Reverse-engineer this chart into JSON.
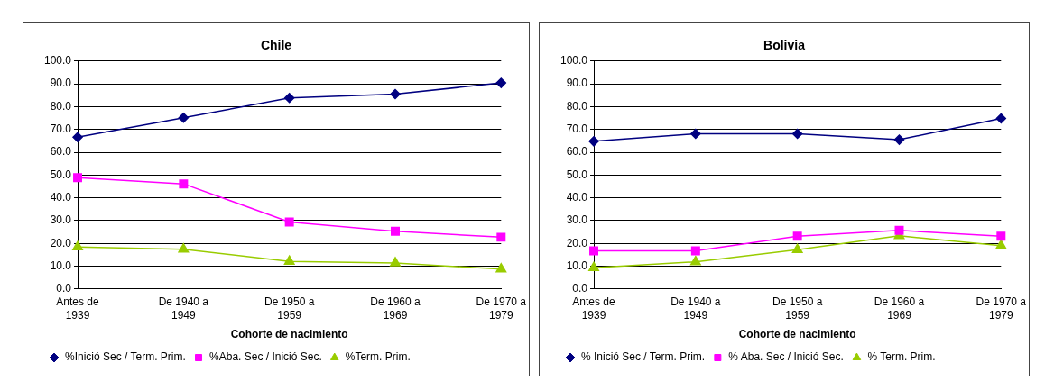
{
  "chart_data": [
    {
      "type": "line",
      "title": "Chile",
      "xlabel": "Cohorte de nacimiento",
      "categories": [
        "Antes de 1939",
        "De 1940 a 1949",
        "De 1950 a 1959",
        "De 1960 a 1969",
        "De 1970 a 1979"
      ],
      "series": [
        {
          "name": "%Inició Sec / Term. Prim.",
          "color": "#000080",
          "marker": "diamond",
          "values": [
            66.6,
            75.1,
            83.8,
            85.5,
            90.4
          ]
        },
        {
          "name": "%Aba. Sec / Inició Sec.",
          "color": "#ff00ff",
          "marker": "square",
          "values": [
            48.8,
            46.1,
            29.4,
            25.3,
            22.7
          ]
        },
        {
          "name": "%Term. Prim.",
          "color": "#99cc00",
          "marker": "triangle",
          "values": [
            18.4,
            17.4,
            12.1,
            11.4,
            8.7
          ]
        }
      ],
      "ylim": [
        0,
        100
      ],
      "yticks": [
        {
          "value": 0,
          "label": "0.0"
        },
        {
          "value": 10,
          "label": "10.0"
        },
        {
          "value": 20,
          "label": "20.0"
        },
        {
          "value": 30,
          "label": "30.0"
        },
        {
          "value": 40,
          "label": "40.0"
        },
        {
          "value": 50,
          "label": "50.0"
        },
        {
          "value": 60,
          "label": "60.0"
        },
        {
          "value": 70,
          "label": "70.0"
        },
        {
          "value": 80,
          "label": "80.0"
        },
        {
          "value": 90,
          "label": "90.0"
        },
        {
          "value": 100,
          "label": "100.0"
        }
      ],
      "grid": "y",
      "legend": "bottom"
    },
    {
      "type": "line",
      "title": "Bolivia",
      "xlabel": "Cohorte de nacimiento",
      "categories": [
        "Antes de 1939",
        "De 1940 a 1949",
        "De 1950 a 1959",
        "De 1960 a 1969",
        "De 1970 a 1979"
      ],
      "series": [
        {
          "name": "% Inició Sec / Term. Prim.",
          "color": "#000080",
          "marker": "diamond",
          "values": [
            64.8,
            68.1,
            68.1,
            65.5,
            74.8
          ]
        },
        {
          "name": "% Aba. Sec / Inició Sec.",
          "color": "#ff00ff",
          "marker": "square",
          "values": [
            16.7,
            16.7,
            23.1,
            25.7,
            23.1
          ]
        },
        {
          "name": "% Term. Prim.",
          "color": "#99cc00",
          "marker": "triangle",
          "values": [
            9.3,
            11.9,
            17.2,
            23.3,
            19.0
          ]
        }
      ],
      "ylim": [
        0,
        100
      ],
      "yticks": [
        {
          "value": 0,
          "label": "0.0"
        },
        {
          "value": 10,
          "label": "10.0"
        },
        {
          "value": 20,
          "label": "20.0"
        },
        {
          "value": 30,
          "label": "30.0"
        },
        {
          "value": 40,
          "label": "40.0"
        },
        {
          "value": 50,
          "label": "50.0"
        },
        {
          "value": 60,
          "label": "60.0"
        },
        {
          "value": 70,
          "label": "70.0"
        },
        {
          "value": 80,
          "label": "80.0"
        },
        {
          "value": 90,
          "label": "90.0"
        },
        {
          "value": 100,
          "label": "100.0"
        }
      ],
      "grid": "y",
      "legend": "bottom"
    }
  ]
}
